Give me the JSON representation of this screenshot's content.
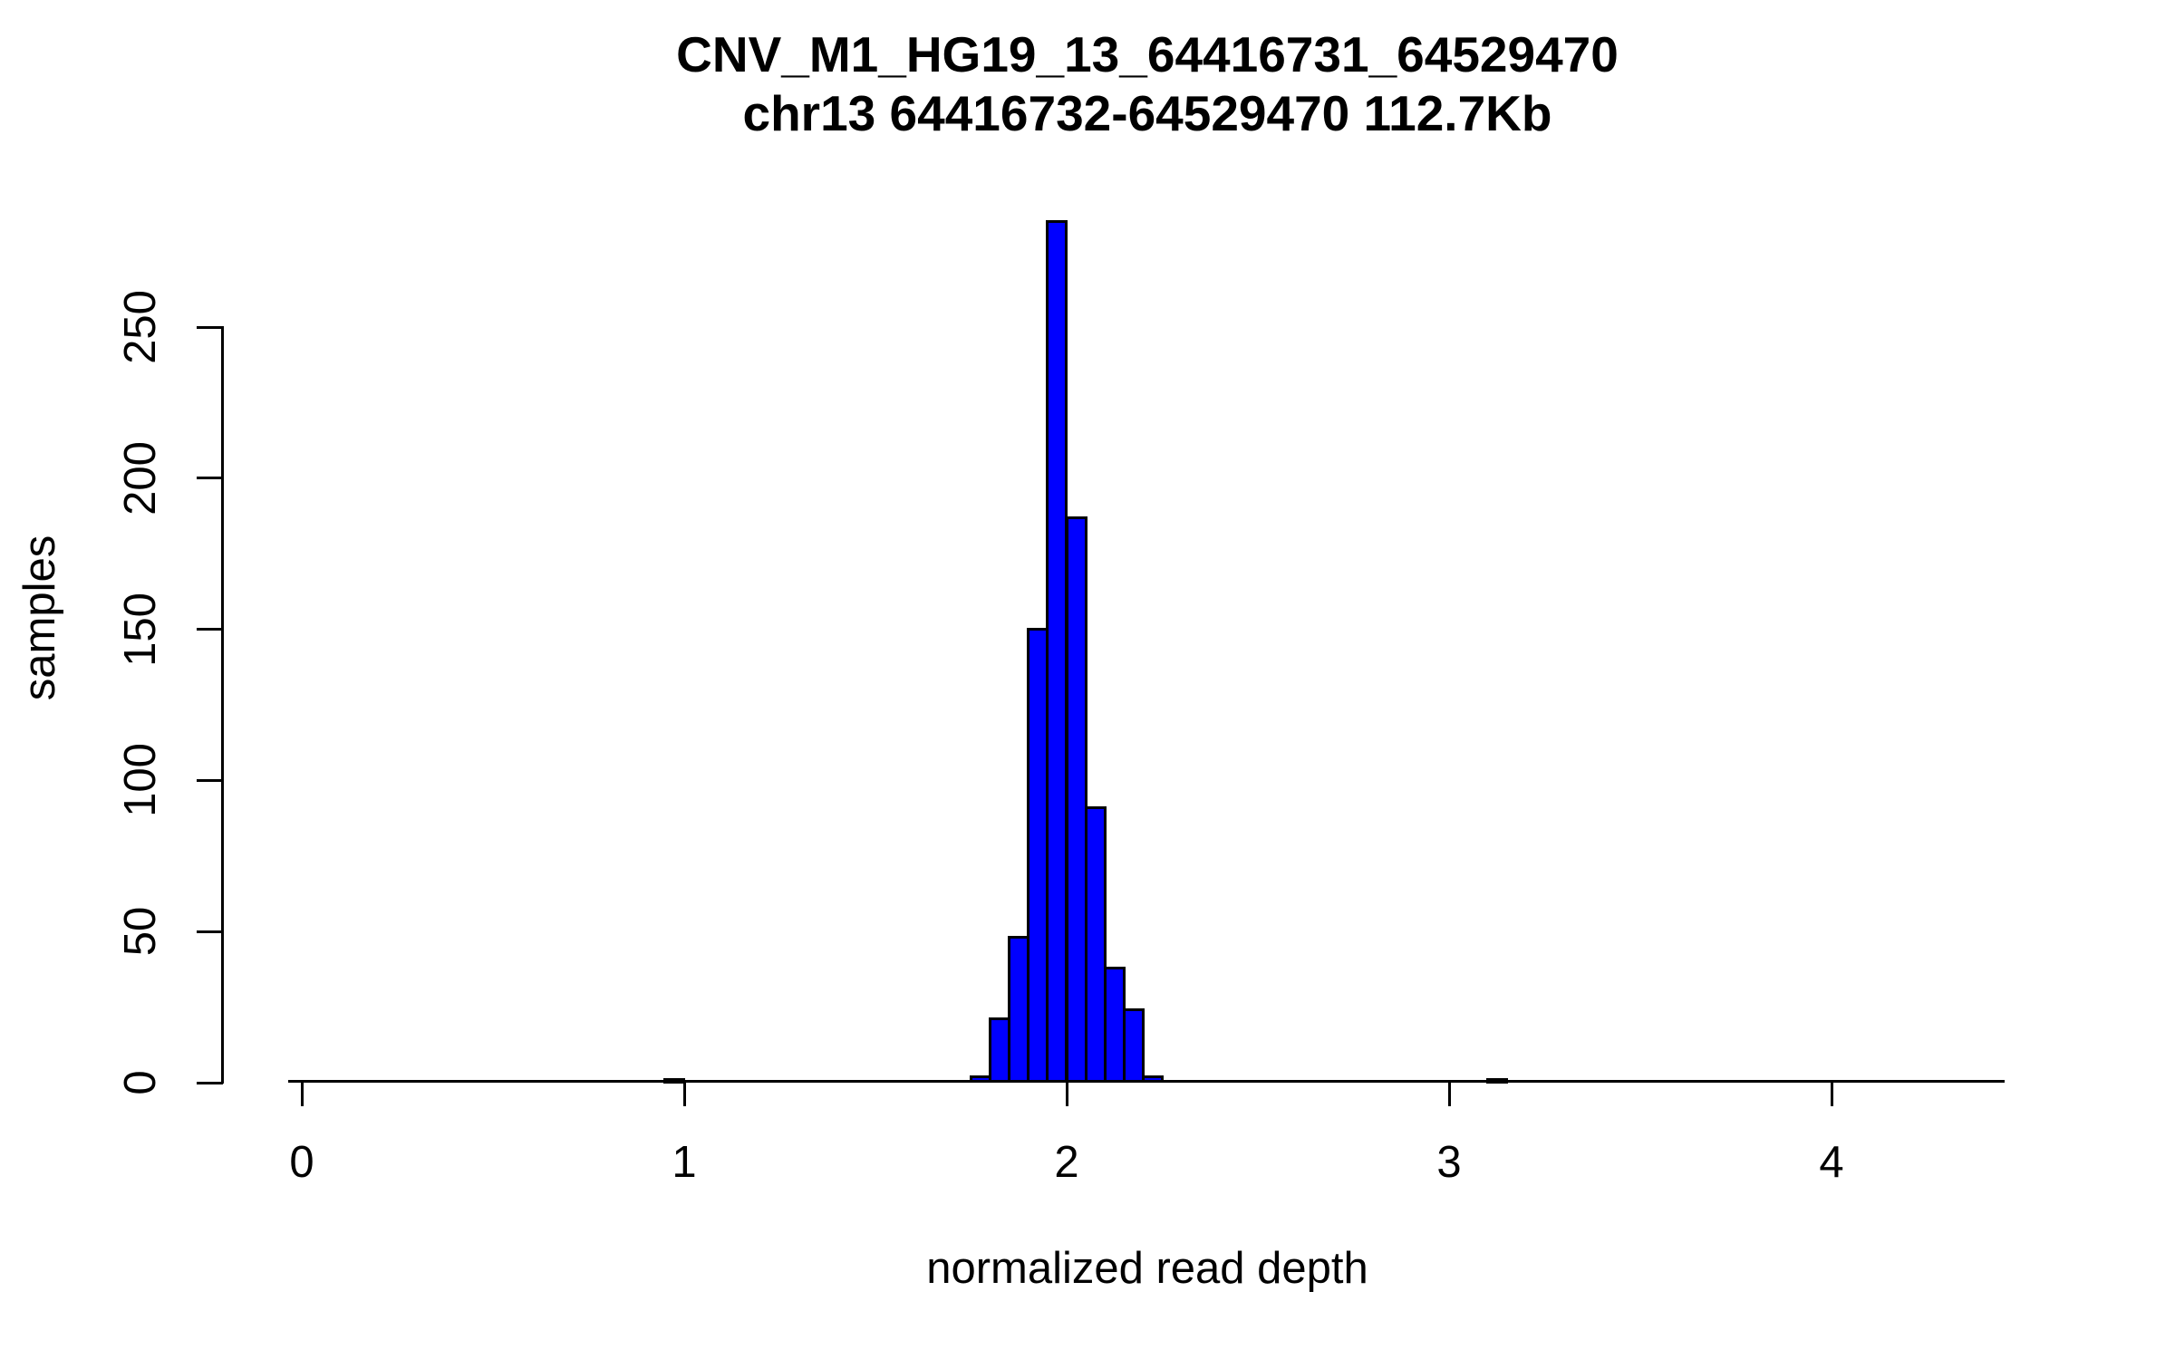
{
  "title": {
    "line1": "CNV_M1_HG19_13_64416731_64529470",
    "line2": "chr13 64416732-64529470 112.7Kb"
  },
  "chart_data": {
    "type": "bar",
    "subtype": "histogram",
    "title": "CNV_M1_HG19_13_64416731_64529470",
    "subtitle": "chr13 64416732-64529470 112.7Kb",
    "xlabel": "normalized read depth",
    "ylabel": "samples",
    "x_tick_labels": [
      "0",
      "1",
      "2",
      "3",
      "4"
    ],
    "y_tick_labels": [
      "0",
      "50",
      "100",
      "150",
      "200",
      "250"
    ],
    "xlim": [
      -0.03,
      4.45
    ],
    "ylim": [
      0,
      285
    ],
    "grid": "off",
    "legend": "none",
    "bin_width": 0.05,
    "bars": [
      {
        "x0": 0.95,
        "x1": 1.0,
        "count": 1
      },
      {
        "x0": 1.75,
        "x1": 1.8,
        "count": 2
      },
      {
        "x0": 1.8,
        "x1": 1.85,
        "count": 21
      },
      {
        "x0": 1.85,
        "x1": 1.9,
        "count": 48
      },
      {
        "x0": 1.9,
        "x1": 1.95,
        "count": 150
      },
      {
        "x0": 1.95,
        "x1": 2.0,
        "count": 285
      },
      {
        "x0": 2.0,
        "x1": 2.05,
        "count": 187
      },
      {
        "x0": 2.05,
        "x1": 2.1,
        "count": 91
      },
      {
        "x0": 2.1,
        "x1": 2.15,
        "count": 38
      },
      {
        "x0": 2.15,
        "x1": 2.2,
        "count": 24
      },
      {
        "x0": 2.2,
        "x1": 2.25,
        "count": 2
      },
      {
        "x0": 3.1,
        "x1": 3.15,
        "count": 1
      }
    ],
    "colors": {
      "bar_fill": "#0000ff",
      "bar_border": "#000000",
      "axis": "#000000",
      "text": "#000000",
      "background": "#ffffff"
    }
  }
}
